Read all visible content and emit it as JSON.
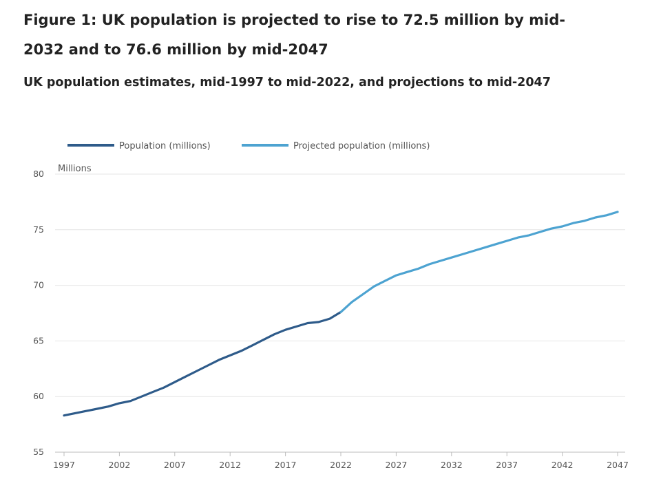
{
  "title": "Figure 1: UK population is projected to rise to 72.5 million by mid-2032 and to 76.6 million by mid-2047",
  "subtitle": "UK population estimates, mid-1997 to mid-2022, and projections to mid-2047",
  "chart_data": {
    "type": "line",
    "unit_label": "Millions",
    "ylim": [
      55,
      80
    ],
    "xlim": [
      1997,
      2047
    ],
    "y_ticks": [
      55,
      60,
      65,
      70,
      75,
      80
    ],
    "x_ticks": [
      1997,
      2002,
      2007,
      2012,
      2017,
      2022,
      2027,
      2032,
      2037,
      2042,
      2047
    ],
    "grid": true,
    "legend_position": "top",
    "series": [
      {
        "name": "Population (millions)",
        "color": "#2e5b8a",
        "x": [
          1997,
          1998,
          1999,
          2000,
          2001,
          2002,
          2003,
          2004,
          2005,
          2006,
          2007,
          2008,
          2009,
          2010,
          2011,
          2012,
          2013,
          2014,
          2015,
          2016,
          2017,
          2018,
          2019,
          2020,
          2021,
          2022
        ],
        "values": [
          58.3,
          58.5,
          58.7,
          58.9,
          59.1,
          59.4,
          59.6,
          60.0,
          60.4,
          60.8,
          61.3,
          61.8,
          62.3,
          62.8,
          63.3,
          63.7,
          64.1,
          64.6,
          65.1,
          65.6,
          66.0,
          66.3,
          66.6,
          66.7,
          67.0,
          67.6
        ]
      },
      {
        "name": "Projected population (millions)",
        "color": "#4da3d1",
        "x": [
          2022,
          2023,
          2024,
          2025,
          2026,
          2027,
          2028,
          2029,
          2030,
          2031,
          2032,
          2033,
          2034,
          2035,
          2036,
          2037,
          2038,
          2039,
          2040,
          2041,
          2042,
          2043,
          2044,
          2045,
          2046,
          2047
        ],
        "values": [
          67.6,
          68.5,
          69.2,
          69.9,
          70.4,
          70.9,
          71.2,
          71.5,
          71.9,
          72.2,
          72.5,
          72.8,
          73.1,
          73.4,
          73.7,
          74.0,
          74.3,
          74.5,
          74.8,
          75.1,
          75.3,
          75.6,
          75.8,
          76.1,
          76.3,
          76.6
        ]
      }
    ]
  }
}
